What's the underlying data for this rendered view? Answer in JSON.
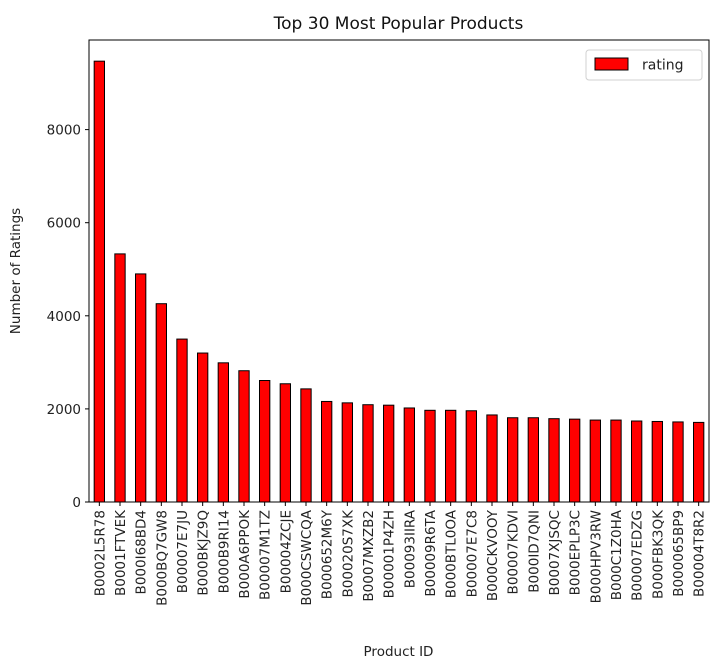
{
  "chart_data": {
    "type": "bar",
    "title": "Top 30 Most Popular Products",
    "xlabel": "Product ID",
    "ylabel": "Number of Ratings",
    "ylim": [
      0,
      9950
    ],
    "yticks": [
      0,
      2000,
      4000,
      6000,
      8000
    ],
    "grid": false,
    "legend_position": "upper right",
    "bar_color": "#ff0000",
    "edge_color": "#000000",
    "categories": [
      "B0002L5R78",
      "B0001FTVEK",
      "B000I68BD4",
      "B000BQ7GW8",
      "B00007E7JU",
      "B000BKJZ9Q",
      "B000B9RI14",
      "B000A6PPOK",
      "B00007M1TZ",
      "B00004ZCJE",
      "B000CSWCQA",
      "B000652M6Y",
      "B00020S7XK",
      "B0007MXZB2",
      "B00001P4ZH",
      "B00093IIRA",
      "B00009R6TA",
      "B000BTL0OA",
      "B00007E7C8",
      "B000CKVOOY",
      "B00007KDVI",
      "B000ID7QNI",
      "B0007XJSQC",
      "B000EPLP3C",
      "B000HPV3RW",
      "B000C1Z0HA",
      "B00007EDZG",
      "B000FBK3QK",
      "B000065BP9",
      "B00004T8R2"
    ],
    "series": [
      {
        "name": "rating",
        "values": [
          9470,
          5330,
          4900,
          4260,
          3500,
          3200,
          2990,
          2820,
          2610,
          2540,
          2430,
          2160,
          2130,
          2090,
          2080,
          2020,
          1970,
          1970,
          1960,
          1870,
          1810,
          1810,
          1790,
          1780,
          1760,
          1760,
          1740,
          1730,
          1720,
          1710
        ]
      }
    ]
  }
}
